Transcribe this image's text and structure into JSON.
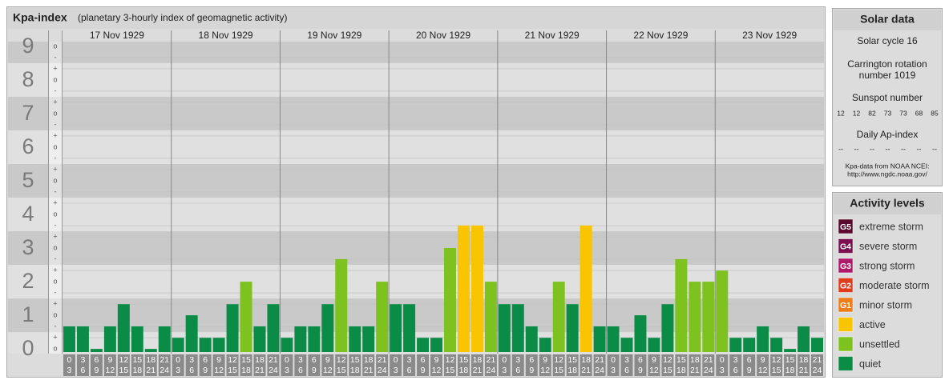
{
  "chart_data": {
    "type": "bar",
    "title": "Kpa-index",
    "subtitle": "(planetary 3-hourly index of geomagnetic activity)",
    "days": [
      "17 Nov 1929",
      "18 Nov 1929",
      "19 Nov 1929",
      "20 Nov 1929",
      "21 Nov 1929",
      "22 Nov 1929",
      "23 Nov 1929"
    ],
    "hour_starts": [
      0,
      3,
      6,
      9,
      12,
      15,
      18,
      21
    ],
    "hour_ends": [
      3,
      6,
      9,
      12,
      15,
      18,
      21,
      24
    ],
    "values": [
      0.67,
      0.67,
      0,
      0.67,
      1.33,
      0.67,
      0,
      0.67,
      0.33,
      1,
      0.33,
      0.33,
      1.33,
      2,
      0.67,
      1.33,
      0.33,
      0.67,
      0.67,
      1.33,
      2.67,
      0.67,
      0.67,
      2,
      1.33,
      1.33,
      0.33,
      0.33,
      3,
      3.67,
      3.67,
      2,
      1.33,
      1.33,
      0.67,
      0.33,
      2,
      1.33,
      3.67,
      0.67,
      0.67,
      0.33,
      1,
      0.33,
      1.33,
      2.67,
      2,
      2,
      2.33,
      0.33,
      0.33,
      0.67,
      0.33,
      0,
      0.67,
      0.33
    ],
    "bar_colors": [
      "#0a8c46",
      "#0a8c46",
      "#0a8c46",
      "#0a8c46",
      "#0a8c46",
      "#0a8c46",
      "#0a8c46",
      "#0a8c46",
      "#0a8c46",
      "#0a8c46",
      "#0a8c46",
      "#0a8c46",
      "#0a8c46",
      "#7dc21e",
      "#0a8c46",
      "#0a8c46",
      "#0a8c46",
      "#0a8c46",
      "#0a8c46",
      "#0a8c46",
      "#7dc21e",
      "#0a8c46",
      "#0a8c46",
      "#7dc21e",
      "#0a8c46",
      "#0a8c46",
      "#0a8c46",
      "#0a8c46",
      "#7dc21e",
      "#f9c400",
      "#f9c400",
      "#7dc21e",
      "#0a8c46",
      "#0a8c46",
      "#0a8c46",
      "#0a8c46",
      "#7dc21e",
      "#0a8c46",
      "#f9c400",
      "#0a8c46",
      "#0a8c46",
      "#0a8c46",
      "#0a8c46",
      "#0a8c46",
      "#0a8c46",
      "#7dc21e",
      "#7dc21e",
      "#7dc21e",
      "#7dc21e",
      "#0a8c46",
      "#0a8c46",
      "#0a8c46",
      "#0a8c46",
      "#0a8c46",
      "#0a8c46",
      "#0a8c46"
    ],
    "ylim": [
      -0.14,
      9.14
    ],
    "yticks": [
      0,
      1,
      2,
      3,
      4,
      5,
      6,
      7,
      8,
      9
    ],
    "minor_marks": [
      "+",
      "o",
      "-"
    ],
    "grid": true
  },
  "solar_data": {
    "title": "Solar data",
    "cycle": "Solar cycle 16",
    "carrington": [
      "Carrington rotation",
      "number 1019"
    ],
    "sunspot_title": "Sunspot number",
    "sunspot_numbers": [
      12,
      12,
      82,
      73,
      73,
      68,
      85
    ],
    "ap_title": "Daily Ap-index",
    "ap_values": [
      "--",
      "--",
      "--",
      "--",
      "--",
      "--",
      "--"
    ],
    "source": [
      "Kpa-data from NOAA NCEI:",
      "http://www.ngdc.noaa.gov/"
    ]
  },
  "activity_levels": {
    "title": "Activity levels",
    "items": [
      {
        "badge": "G5",
        "name": "extreme storm",
        "color": "#5a0a2c"
      },
      {
        "badge": "G4",
        "name": "severe storm",
        "color": "#7a1050"
      },
      {
        "badge": "G3",
        "name": "strong storm",
        "color": "#b0186c"
      },
      {
        "badge": "G2",
        "name": "moderate storm",
        "color": "#df3c1e"
      },
      {
        "badge": "G1",
        "name": "minor storm",
        "color": "#ee7c18"
      },
      {
        "name": "active",
        "color": "#f9c400"
      },
      {
        "name": "unsettled",
        "color": "#7dc21e"
      },
      {
        "name": "quiet",
        "color": "#0a8c46"
      }
    ]
  }
}
